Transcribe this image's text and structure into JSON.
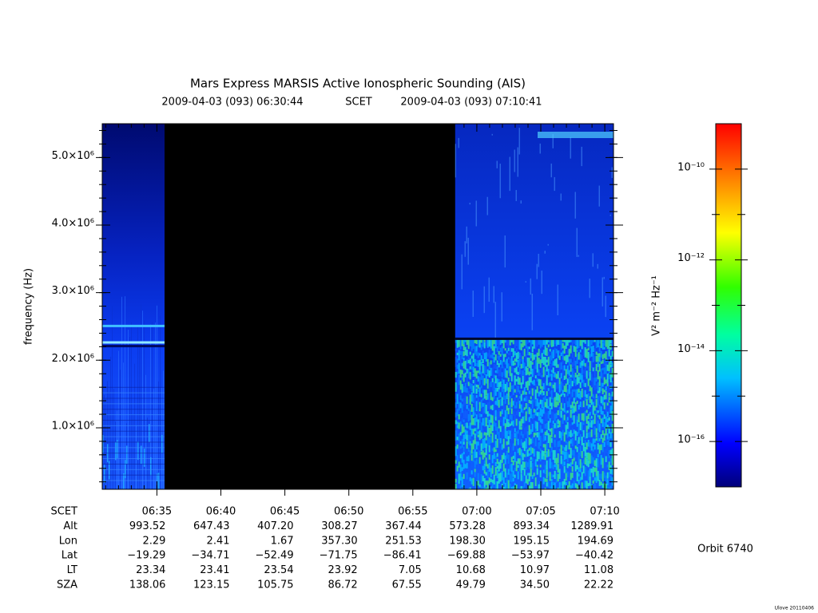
{
  "chart_data": {
    "type": "spectrogram",
    "title": "Mars Express MARSIS Active Ionospheric Sounding (AIS)",
    "start_time": "2009-04-03 (093) 06:30:44",
    "time_label": "SCET",
    "end_time": "2009-04-03 (093) 07:10:41",
    "ylabel": "frequency (Hz)",
    "xlim": [
      390.73,
      430.68
    ],
    "xticks": [
      {
        "value": 395,
        "label": "06:35"
      },
      {
        "value": 400,
        "label": "06:40"
      },
      {
        "value": 405,
        "label": "06:45"
      },
      {
        "value": 410,
        "label": "06:50"
      },
      {
        "value": 415,
        "label": "06:55"
      },
      {
        "value": 420,
        "label": "07:00"
      },
      {
        "value": 425,
        "label": "07:05"
      },
      {
        "value": 430,
        "label": "07:10"
      }
    ],
    "ylim": [
      90000,
      5500000
    ],
    "yticks": [
      {
        "value": 1000000,
        "label": "1.0×10⁶"
      },
      {
        "value": 2000000,
        "label": "2.0×10⁶"
      },
      {
        "value": 3000000,
        "label": "3.0×10⁶"
      },
      {
        "value": 4000000,
        "label": "4.0×10⁶"
      },
      {
        "value": 5000000,
        "label": "5.0×10⁶"
      }
    ],
    "data_gap": [
      395.6,
      418.3
    ],
    "colorbar": {
      "label": "V² m⁻² Hz⁻¹",
      "log_scale": true,
      "clim": [
        1e-17,
        1e-09
      ],
      "ticks": [
        {
          "value": 1e-16,
          "label": "10⁻¹⁶"
        },
        {
          "value": 1e-14,
          "label": "10⁻¹⁴"
        },
        {
          "value": 1e-12,
          "label": "10⁻¹²"
        },
        {
          "value": 1e-10,
          "label": "10⁻¹⁰"
        }
      ]
    },
    "ephemeris": {
      "x_row_label": "SCET",
      "row_labels": [
        "Alt",
        "Lon",
        "Lat",
        "LT",
        "SZA"
      ],
      "rows": [
        [
          "993.52",
          "647.43",
          "407.20",
          "308.27",
          "367.44",
          "573.28",
          "893.34",
          "1289.91"
        ],
        [
          "2.29",
          "2.41",
          "1.67",
          "357.30",
          "251.53",
          "198.30",
          "195.15",
          "194.69"
        ],
        [
          "−19.29",
          "−34.71",
          "−52.49",
          "−71.75",
          "−86.41",
          "−69.88",
          "−53.97",
          "−40.42"
        ],
        [
          "23.34",
          "23.41",
          "23.54",
          "23.92",
          "7.05",
          "10.68",
          "10.97",
          "11.08"
        ],
        [
          "138.06",
          "123.15",
          "105.75",
          "86.72",
          "67.55",
          "49.79",
          "34.50",
          "22.22"
        ]
      ]
    },
    "orbit": "Orbit 6740",
    "credit": "Ulove 20110406"
  }
}
